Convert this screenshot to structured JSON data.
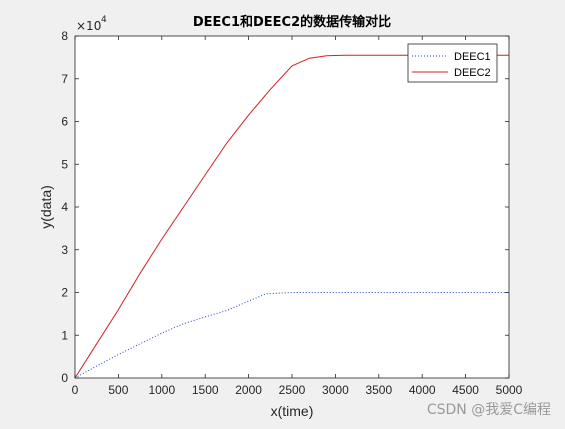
{
  "chart_data": {
    "type": "line",
    "title": "DEEC1和DEEC2的数据传输对比",
    "xlabel": "x(time)",
    "ylabel": "y(data)",
    "xlim": [
      0,
      5000
    ],
    "ylim": [
      0,
      80000
    ],
    "x_ticks": [
      0,
      500,
      1000,
      1500,
      2000,
      2500,
      3000,
      3500,
      4000,
      4500,
      5000
    ],
    "y_ticks": [
      0,
      1,
      2,
      3,
      4,
      5,
      6,
      7,
      8
    ],
    "y_multiplier": "×10",
    "y_multiplier_exp": "4",
    "grid": false,
    "legend_placement": "top-right",
    "series": [
      {
        "name": "DEEC1",
        "color": "#1f3fbf",
        "style": "dotted",
        "x": [
          0,
          250,
          500,
          750,
          1000,
          1250,
          1500,
          1750,
          2000,
          2200,
          2500,
          3000,
          3500,
          4000,
          4500,
          5000
        ],
        "y": [
          0,
          2800,
          5500,
          8000,
          10500,
          12700,
          14300,
          15800,
          18000,
          19700,
          20000,
          20000,
          20000,
          20000,
          20000,
          20000
        ]
      },
      {
        "name": "DEEC2",
        "color": "#d42020",
        "style": "solid",
        "x": [
          0,
          250,
          500,
          750,
          1000,
          1250,
          1500,
          1750,
          2000,
          2250,
          2500,
          2700,
          2900,
          3100,
          3500,
          4000,
          4500,
          5000
        ],
        "y": [
          0,
          8000,
          16000,
          24500,
          32500,
          40000,
          47500,
          55000,
          61500,
          67500,
          73000,
          74800,
          75400,
          75500,
          75500,
          75500,
          75500,
          75500
        ]
      }
    ]
  },
  "watermark": "CSDN @我爱C编程"
}
